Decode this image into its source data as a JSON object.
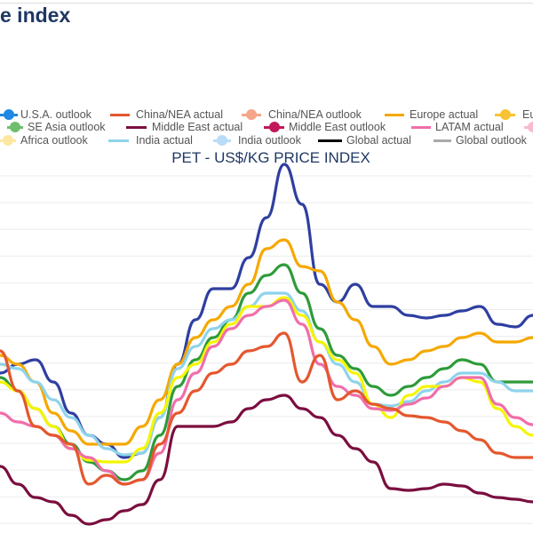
{
  "header": {
    "title": "e index"
  },
  "chart_data": {
    "type": "line",
    "title": "PET - US$/KG PRICE INDEX",
    "grid": "horizontal",
    "legend_placement": "top",
    "legend": [
      {
        "label": "U.S.A. outlook",
        "style": "marker",
        "color": "#1e88e5"
      },
      {
        "label": "China/NEA actual",
        "style": "line",
        "color": "#e4572e"
      },
      {
        "label": "China/NEA outlook",
        "style": "marker",
        "color": "#f6a58a"
      },
      {
        "label": "Europe actual",
        "style": "line",
        "color": "#f5a800"
      },
      {
        "label": "Eu",
        "style": "marker",
        "color": "#f7c331"
      },
      {
        "label": "SE Asia outlook",
        "style": "marker",
        "color": "#6dbf6d"
      },
      {
        "label": "Middle East actual",
        "style": "line",
        "color": "#7b0e3f"
      },
      {
        "label": "Middle East outlook",
        "style": "marker",
        "color": "#c2185b"
      },
      {
        "label": "LATAM actual",
        "style": "line",
        "color": "#f06eaa"
      },
      {
        "label": "",
        "style": "marker",
        "color": "#f8bbd0"
      },
      {
        "label": "Africa outlook",
        "style": "marker",
        "color": "#fde7a0"
      },
      {
        "label": "India actual",
        "style": "line",
        "color": "#8fd3ec"
      },
      {
        "label": "India outlook",
        "style": "marker",
        "color": "#b9dcf7"
      },
      {
        "label": "Global actual",
        "style": "line",
        "color": "#000000"
      },
      {
        "label": "Global outlook",
        "style": "line",
        "color": "#aaaaaa"
      }
    ],
    "ylim": [
      0,
      43
    ],
    "x": [
      0,
      1,
      2,
      3,
      4,
      5,
      6,
      7,
      8,
      9,
      10,
      11,
      12,
      13,
      14,
      15,
      16,
      17,
      18,
      19,
      20,
      21,
      22,
      23,
      24,
      25,
      26,
      27,
      28,
      29,
      30
    ],
    "series": [
      {
        "color": "#2f3fa0",
        "values": [
          18,
          19,
          19.5,
          17,
          13.5,
          11,
          10,
          8.5,
          9,
          13,
          19,
          24,
          27.5,
          27.5,
          31,
          35.5,
          41.5,
          37,
          28,
          26,
          28,
          25.5,
          25.5,
          24.5,
          24.2,
          24.5,
          25,
          25.5,
          23.5,
          23.2,
          24.5
        ]
      },
      {
        "color": "#f5a800",
        "values": [
          20,
          19,
          17,
          13.5,
          11.5,
          10,
          10,
          10,
          12,
          15,
          19,
          22,
          24,
          25.5,
          28,
          32,
          33,
          30,
          29.5,
          26,
          24,
          21,
          19,
          19.5,
          20.5,
          21,
          22,
          22.5,
          21.5,
          21.5,
          22
        ]
      },
      {
        "color": "#2e9b3a",
        "values": [
          17.5,
          16,
          14,
          12,
          10,
          8,
          7,
          6,
          7,
          11,
          16.5,
          19.5,
          22,
          24,
          27,
          29,
          30.2,
          27,
          23,
          20,
          18.5,
          16.5,
          15.5,
          16.5,
          17.5,
          18.5,
          19.5,
          19,
          17,
          17,
          17
        ]
      },
      {
        "color": "#8fd3ec",
        "values": [
          19,
          18.5,
          17,
          15,
          13,
          11,
          9.5,
          8.8,
          9,
          13,
          18.5,
          21,
          23,
          24,
          25.5,
          27,
          27,
          25,
          21.5,
          19,
          17,
          14.5,
          14.3,
          14.8,
          16,
          17,
          18,
          18,
          17,
          16,
          16
        ]
      },
      {
        "color": "#f5f500",
        "values": [
          17,
          16,
          14,
          12,
          9.5,
          8.2,
          8,
          8,
          9.5,
          13.5,
          17.5,
          19,
          21.5,
          23.5,
          25.5,
          25.5,
          26.5,
          24.5,
          21.5,
          19.5,
          18,
          14.5,
          13,
          15.5,
          16.5,
          16.5,
          17.5,
          17,
          14,
          12,
          11
        ]
      },
      {
        "color": "#f06eaa",
        "values": [
          13.5,
          12.5,
          12,
          11,
          9.5,
          8.5,
          7,
          5.5,
          6,
          9,
          15,
          18,
          21,
          23,
          24.5,
          25.5,
          26.2,
          23.5,
          19,
          16.5,
          15.5,
          14,
          13.8,
          14.5,
          15.2,
          16.5,
          17.5,
          17.5,
          14.5,
          13,
          12.2
        ]
      },
      {
        "color": "#e4572e",
        "values": [
          20.5,
          16,
          12,
          11,
          10,
          5.5,
          6.5,
          5.5,
          6,
          10,
          13.5,
          16,
          18,
          19,
          20.5,
          21,
          22.5,
          17,
          20,
          15,
          16,
          14.5,
          14,
          13.2,
          13,
          12.5,
          11.5,
          10.5,
          9,
          8.5,
          8.5
        ]
      },
      {
        "color": "#7b0e3f",
        "values": [
          7.5,
          5.5,
          4,
          3.5,
          2,
          1,
          1.5,
          2.5,
          3.2,
          6,
          12,
          12,
          12,
          12.5,
          14,
          15,
          15.5,
          14,
          13,
          11,
          9.5,
          8,
          5,
          4.8,
          5,
          5.5,
          5.3,
          4.5,
          4,
          3.8,
          3.5
        ]
      }
    ]
  }
}
